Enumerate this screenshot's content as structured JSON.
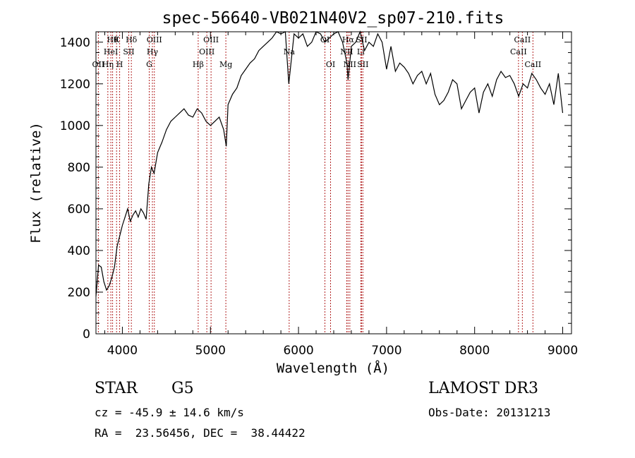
{
  "chart_data": {
    "type": "line",
    "title": "spec-56640-VB021N40V2_sp07-210.fits",
    "xlabel": "Wavelength (Å)",
    "ylabel": "Flux (relative)",
    "xlim": [
      3700,
      9100
    ],
    "ylim": [
      0,
      1450
    ],
    "xticks": [
      4000,
      5000,
      6000,
      7000,
      8000,
      9000
    ],
    "yticks": [
      0,
      200,
      400,
      600,
      800,
      1000,
      1200,
      1400
    ],
    "grid": false,
    "line_color": "#000000",
    "marker_color": "#b22222",
    "series": [
      {
        "x": [
          3700,
          3730,
          3760,
          3790,
          3820,
          3850,
          3880,
          3910,
          3940,
          3970,
          4000,
          4030,
          4060,
          4090,
          4120,
          4150,
          4180,
          4210,
          4240,
          4270,
          4300,
          4330,
          4360,
          4400,
          4450,
          4500,
          4550,
          4600,
          4650,
          4700,
          4750,
          4800,
          4850,
          4900,
          4950,
          5000,
          5050,
          5100,
          5150,
          5180,
          5200,
          5250,
          5300,
          5350,
          5400,
          5450,
          5500,
          5550,
          5600,
          5650,
          5700,
          5750,
          5800,
          5850,
          5890,
          5950,
          6000,
          6050,
          6100,
          6150,
          6200,
          6250,
          6300,
          6350,
          6400,
          6450,
          6500,
          6550,
          6563,
          6600,
          6650,
          6700,
          6750,
          6800,
          6850,
          6900,
          6950,
          7000,
          7050,
          7100,
          7150,
          7200,
          7250,
          7300,
          7350,
          7400,
          7450,
          7500,
          7550,
          7600,
          7650,
          7700,
          7750,
          7800,
          7850,
          7900,
          7950,
          8000,
          8050,
          8100,
          8150,
          8200,
          8250,
          8300,
          8350,
          8400,
          8450,
          8500,
          8550,
          8600,
          8650,
          8700,
          8750,
          8800,
          8850,
          8900,
          8950,
          9000
        ],
        "y": [
          180,
          330,
          320,
          250,
          210,
          230,
          270,
          320,
          420,
          470,
          520,
          560,
          600,
          540,
          570,
          590,
          560,
          600,
          580,
          550,
          720,
          800,
          770,
          870,
          920,
          980,
          1020,
          1040,
          1060,
          1080,
          1050,
          1040,
          1080,
          1060,
          1020,
          1000,
          1020,
          1040,
          980,
          900,
          1100,
          1150,
          1180,
          1240,
          1270,
          1300,
          1320,
          1360,
          1380,
          1400,
          1420,
          1460,
          1440,
          1450,
          1200,
          1440,
          1420,
          1440,
          1380,
          1400,
          1460,
          1440,
          1400,
          1420,
          1440,
          1460,
          1400,
          1300,
          1220,
          1380,
          1400,
          1450,
          1360,
          1400,
          1380,
          1440,
          1400,
          1270,
          1380,
          1260,
          1300,
          1280,
          1250,
          1200,
          1240,
          1260,
          1200,
          1250,
          1150,
          1100,
          1120,
          1160,
          1220,
          1200,
          1080,
          1120,
          1160,
          1180,
          1060,
          1160,
          1200,
          1140,
          1220,
          1260,
          1230,
          1240,
          1200,
          1140,
          1200,
          1180,
          1250,
          1220,
          1180,
          1150,
          1200,
          1100,
          1250,
          1060
        ]
      }
    ],
    "line_markers": [
      {
        "x": 3727,
        "label": "OII",
        "row": 3
      },
      {
        "x": 3835,
        "label": "Hη",
        "row": 3
      },
      {
        "x": 3869,
        "label": "HeI",
        "row": 2
      },
      {
        "x": 3889,
        "label": "Hθ",
        "row": 1
      },
      {
        "x": 3934,
        "label": "K",
        "row": 1
      },
      {
        "x": 3969,
        "label": "H",
        "row": 3
      },
      {
        "x": 4072,
        "label": "SII",
        "row": 2
      },
      {
        "x": 4102,
        "label": "Hδ",
        "row": 1
      },
      {
        "x": 4305,
        "label": "G",
        "row": 3
      },
      {
        "x": 4341,
        "label": "Hγ",
        "row": 2
      },
      {
        "x": 4363,
        "label": "OIII",
        "row": 1
      },
      {
        "x": 4861,
        "label": "Hβ",
        "row": 3
      },
      {
        "x": 4959,
        "label": "OIII",
        "row": 2
      },
      {
        "x": 5007,
        "label": "OIII",
        "row": 1
      },
      {
        "x": 5175,
        "label": "Mg",
        "row": 3
      },
      {
        "x": 5894,
        "label": "Na",
        "row": 2
      },
      {
        "x": 6300,
        "label": "OI",
        "row": 1
      },
      {
        "x": 6364,
        "label": "OI",
        "row": 3
      },
      {
        "x": 6548,
        "label": "NII",
        "row": 2
      },
      {
        "x": 6563,
        "label": "Hα",
        "row": 1
      },
      {
        "x": 6583,
        "label": "NII",
        "row": 3
      },
      {
        "x": 6707,
        "label": "Li",
        "row": 2
      },
      {
        "x": 6716,
        "label": "SII",
        "row": 1
      },
      {
        "x": 6731,
        "label": "SII",
        "row": 3
      },
      {
        "x": 8498,
        "label": "CaII",
        "row": 2
      },
      {
        "x": 8542,
        "label": "CaII",
        "row": 1
      },
      {
        "x": 8662,
        "label": "CaII",
        "row": 3
      }
    ]
  },
  "info": {
    "class": "STAR",
    "subclass": "G5",
    "survey": "LAMOST DR3",
    "cz": "cz = -45.9 ± 14.6 km/s",
    "obs_date": "Obs-Date: 20131213",
    "coords": "RA =  23.56456, DEC =  38.44422"
  }
}
